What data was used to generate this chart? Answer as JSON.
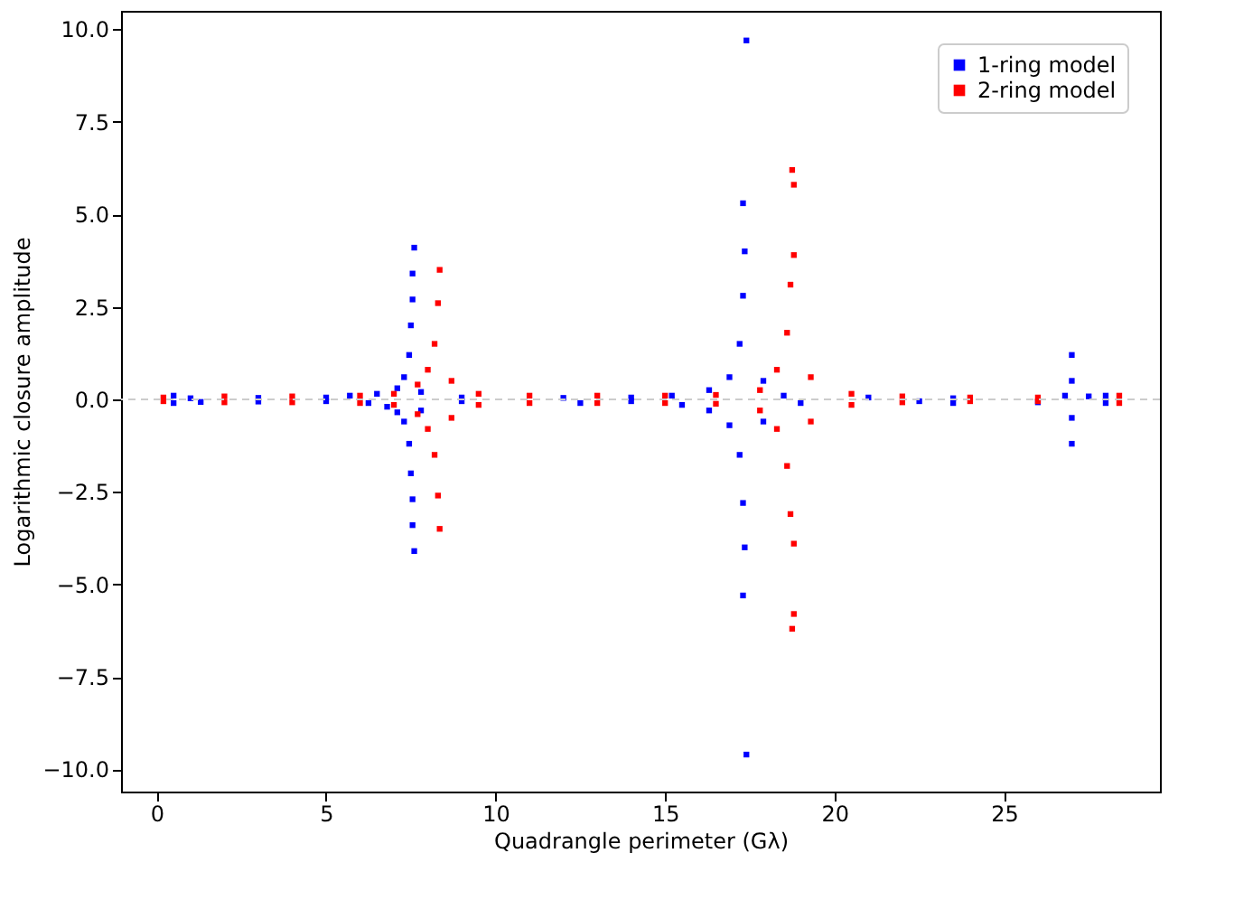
{
  "chart_data": {
    "type": "scatter",
    "xlabel": "Quadrangle perimeter (Gλ)",
    "ylabel": "Logarithmic closure amplitude",
    "xlim": [
      -1.05,
      29.6
    ],
    "xticks": [
      0,
      5,
      10,
      15,
      20,
      25
    ],
    "ylim": [
      -10.6,
      10.5
    ],
    "yticks": [
      {
        "value": -10,
        "label": "−10.0"
      },
      {
        "value": -7.5,
        "label": "−7.5"
      },
      {
        "value": -5,
        "label": "−5.0"
      },
      {
        "value": -2.5,
        "label": "−2.5"
      },
      {
        "value": 0,
        "label": "0.0"
      },
      2.5,
      {
        "value": 5,
        "label": "5.0"
      },
      7.5,
      {
        "value": 10,
        "label": "10.0"
      }
    ],
    "grid": false,
    "legend": "top right",
    "marker": "square",
    "ref_lines": [
      {
        "axis": "y",
        "value": 0,
        "color": "#cccccc",
        "line_style": "dashed"
      }
    ],
    "series": [
      {
        "name": "1-ring model",
        "color": "#0000ff",
        "x": [
          0.5,
          0.5,
          1,
          1.3,
          3,
          3,
          5,
          5,
          5.7,
          6.25,
          6.5,
          6.8,
          7.1,
          7.1,
          7.3,
          7.3,
          7.45,
          7.45,
          7.5,
          7.5,
          7.55,
          7.55,
          7.55,
          7.55,
          7.6,
          7.6,
          7.8,
          7.8,
          9,
          9,
          12,
          12.5,
          14,
          14,
          15.2,
          15.5,
          16.3,
          16.3,
          16.9,
          16.9,
          17.2,
          17.2,
          17.3,
          17.3,
          17.35,
          17.35,
          17.3,
          17.3,
          17.4,
          17.4,
          17.9,
          17.9,
          18.5,
          19,
          21,
          22.5,
          23.5,
          23.5,
          26,
          26.8,
          27,
          27,
          27,
          27,
          27.5,
          28,
          28
        ],
        "values": [
          0.1,
          -0.1,
          0.03,
          -0.07,
          0.04,
          -0.06,
          0.05,
          -0.05,
          0.1,
          -0.1,
          0.15,
          -0.2,
          0.3,
          -0.35,
          0.6,
          -0.6,
          1.2,
          -1.2,
          2,
          -2,
          2.7,
          -2.7,
          3.4,
          -3.4,
          4.1,
          -4.1,
          0.2,
          -0.3,
          0.05,
          -0.05,
          0.04,
          -0.1,
          0.05,
          -0.05,
          0.1,
          -0.15,
          0.25,
          -0.3,
          0.6,
          -0.7,
          1.5,
          -1.5,
          2.8,
          -2.8,
          4,
          -4,
          5.3,
          -5.3,
          9.7,
          -9.6,
          0.5,
          -0.6,
          0.1,
          -0.1,
          0.05,
          -0.05,
          0.03,
          -0.1,
          -0.08,
          0.1,
          0.5,
          -0.5,
          1.2,
          -1.2,
          0.08,
          0.1,
          -0.1
        ]
      },
      {
        "name": "2-ring model",
        "color": "#ff0000",
        "x": [
          0.2,
          0.2,
          2,
          2,
          4,
          4,
          6,
          6,
          7,
          7,
          7.7,
          7.7,
          8,
          8,
          8.2,
          8.2,
          8.3,
          8.3,
          8.35,
          8.35,
          8.7,
          8.7,
          9.5,
          9.5,
          11,
          11,
          13,
          13,
          15,
          15,
          16.5,
          16.5,
          17.8,
          17.8,
          18.3,
          18.3,
          18.6,
          18.6,
          18.7,
          18.7,
          18.8,
          18.8,
          18.8,
          18.8,
          18.75,
          18.75,
          19.3,
          19.3,
          20.5,
          20.5,
          22,
          22,
          24,
          24,
          26,
          26,
          28.4,
          28.4
        ],
        "values": [
          0.05,
          -0.05,
          0.08,
          -0.08,
          0.08,
          -0.08,
          0.1,
          -0.1,
          0.15,
          -0.15,
          0.4,
          -0.4,
          0.8,
          -0.8,
          1.5,
          -1.5,
          2.6,
          -2.6,
          3.5,
          -3.5,
          0.5,
          -0.5,
          0.15,
          -0.15,
          0.1,
          -0.1,
          0.1,
          -0.1,
          0.1,
          -0.1,
          0.12,
          -0.12,
          0.25,
          -0.3,
          0.8,
          -0.8,
          1.8,
          -1.8,
          3.1,
          -3.1,
          3.9,
          -3.9,
          5.8,
          -5.8,
          6.2,
          -6.2,
          0.6,
          -0.6,
          0.15,
          -0.15,
          0.08,
          -0.08,
          0.05,
          -0.05,
          0.05,
          -0.05,
          0.1,
          -0.1
        ]
      }
    ]
  }
}
